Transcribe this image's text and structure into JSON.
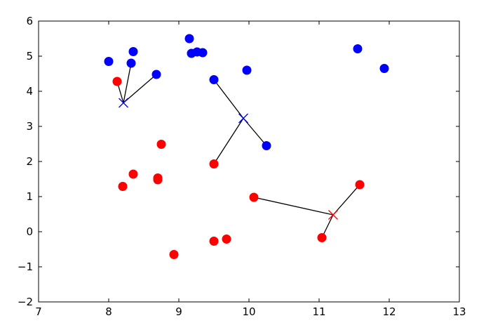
{
  "chart_data": {
    "type": "scatter",
    "title": "",
    "xlabel": "",
    "ylabel": "",
    "xlim": [
      7,
      13
    ],
    "ylim": [
      -2,
      6
    ],
    "xticks": [
      7,
      8,
      9,
      10,
      11,
      12,
      13
    ],
    "yticks": [
      -2,
      -1,
      0,
      1,
      2,
      3,
      4,
      5,
      6
    ],
    "grid": false,
    "series": [
      {
        "color": "#0000ff",
        "marker": "circle",
        "points": [
          [
            8.0,
            4.85
          ],
          [
            8.32,
            4.8
          ],
          [
            8.35,
            5.13
          ],
          [
            8.68,
            4.48
          ],
          [
            9.15,
            5.5
          ],
          [
            9.18,
            5.08
          ],
          [
            9.26,
            5.12
          ],
          [
            9.34,
            5.1
          ],
          [
            9.5,
            4.33
          ],
          [
            9.97,
            4.6
          ],
          [
            10.25,
            2.45
          ],
          [
            11.55,
            5.21
          ],
          [
            11.93,
            4.65
          ]
        ]
      },
      {
        "color": "#ff0000",
        "marker": "circle",
        "points": [
          [
            8.12,
            4.28
          ],
          [
            8.2,
            1.29
          ],
          [
            8.35,
            1.64
          ],
          [
            8.7,
            1.53
          ],
          [
            8.7,
            1.48
          ],
          [
            8.75,
            2.49
          ],
          [
            8.93,
            -0.65
          ],
          [
            9.5,
            1.93
          ],
          [
            9.5,
            -0.27
          ],
          [
            9.68,
            -0.21
          ],
          [
            10.07,
            0.98
          ],
          [
            11.04,
            -0.17
          ],
          [
            11.58,
            1.34
          ]
        ]
      }
    ],
    "centers": [
      {
        "color": "#0000ff",
        "marker": "x",
        "point": [
          8.21,
          3.67
        ]
      },
      {
        "color": "#0000ff",
        "marker": "x",
        "point": [
          9.92,
          3.23
        ]
      },
      {
        "color": "#ff0000",
        "marker": "x",
        "point": [
          11.2,
          0.48
        ]
      }
    ],
    "connections": [
      {
        "from": [
          8.21,
          3.67
        ],
        "to": [
          8.12,
          4.28
        ]
      },
      {
        "from": [
          8.21,
          3.67
        ],
        "to": [
          8.32,
          4.8
        ]
      },
      {
        "from": [
          8.21,
          3.67
        ],
        "to": [
          8.68,
          4.48
        ]
      },
      {
        "from": [
          9.92,
          3.23
        ],
        "to": [
          9.5,
          4.33
        ]
      },
      {
        "from": [
          9.92,
          3.23
        ],
        "to": [
          9.5,
          1.93
        ]
      },
      {
        "from": [
          9.92,
          3.23
        ],
        "to": [
          10.25,
          2.45
        ]
      },
      {
        "from": [
          11.2,
          0.48
        ],
        "to": [
          10.07,
          0.98
        ]
      },
      {
        "from": [
          11.2,
          0.48
        ],
        "to": [
          11.58,
          1.34
        ]
      },
      {
        "from": [
          11.2,
          0.48
        ],
        "to": [
          11.04,
          -0.17
        ]
      }
    ]
  }
}
